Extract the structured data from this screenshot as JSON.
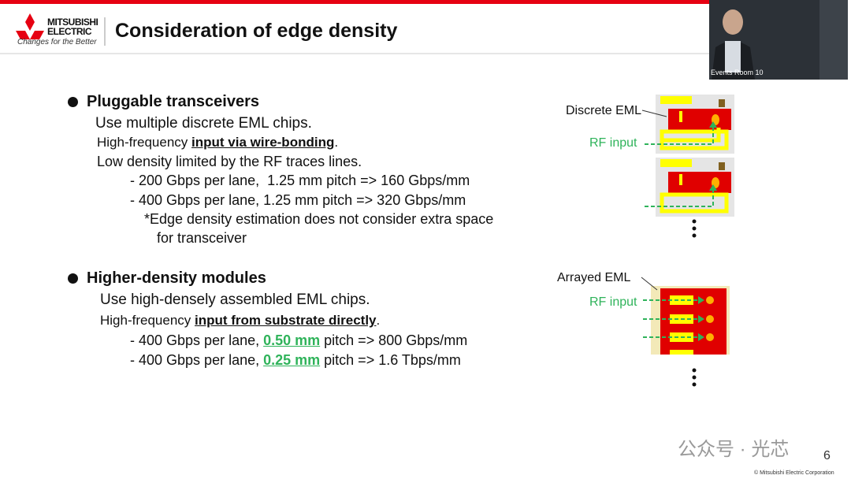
{
  "header": {
    "logo": {
      "line1": "MITSUBISHI",
      "line2": "ELECTRIC",
      "slogan": "Changes for the Better"
    },
    "title": "Consideration of edge density"
  },
  "video": {
    "label": "Events Room 10"
  },
  "sections": [
    {
      "heading": "Pluggable transceivers",
      "lines": [
        {
          "parts": [
            "Use multiple discrete EML chips."
          ]
        },
        {
          "parts": [
            "High-frequency ",
            "input via wire-bonding",
            "."
          ]
        },
        {
          "parts": [
            "Low density limited by the RF traces lines."
          ]
        },
        {
          "parts": [
            "- 200 Gbps per lane,  1.25 mm pitch => 160 Gbps/mm"
          ]
        },
        {
          "parts": [
            "- 400 Gbps per lane, 1.25 mm pitch => 320 Gbps/mm"
          ]
        },
        {
          "parts": [
            "*Edge density estimation does not consider extra space"
          ]
        },
        {
          "parts": [
            "for transceiver"
          ]
        }
      ]
    },
    {
      "heading": "Higher-density modules",
      "lines": [
        {
          "parts": [
            "Use high-densely assembled EML chips."
          ]
        },
        {
          "parts": [
            "High-frequency ",
            "input from substrate directly",
            "."
          ]
        },
        {
          "parts": [
            "- 400 Gbps per lane, ",
            "0.50 mm",
            " pitch => 800 Gbps/mm"
          ]
        },
        {
          "parts": [
            "- 400 Gbps per lane, ",
            "0.25 mm",
            " pitch => 1.6 Tbps/mm"
          ]
        }
      ]
    }
  ],
  "diagrams": {
    "discrete": {
      "label": "Discrete EML",
      "rf": "RF input"
    },
    "arrayed": {
      "label": "Arrayed EML",
      "rf": "RF input"
    }
  },
  "footer": {
    "watermark": "公众号 · 光芯",
    "page": "6",
    "copyright": "© Mitsubishi Electric Corporation"
  }
}
